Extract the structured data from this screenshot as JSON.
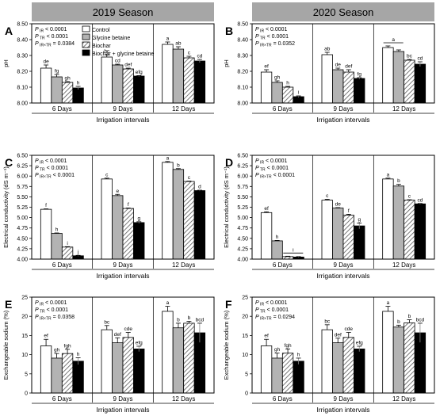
{
  "season_headers": [
    "2019 Season",
    "2020 Season"
  ],
  "legend": [
    "Control",
    "Glycine betaine",
    "Biochar",
    "Biochar + glycine betaine"
  ],
  "colors": {
    "control": "#ffffff",
    "glycine": "#b3b3b3",
    "biochar_hatch": "#555555",
    "combined": "#000000",
    "header_bg": "#a6a6a6"
  },
  "chart_data": [
    {
      "type": "bar",
      "panel_label": "A",
      "season": "2019 Season",
      "stats": [
        "P IR < 0.0001",
        "P TR < 0.0001",
        "P IR×TR = 0.0384"
      ],
      "xlabel": "Irrigation intervals",
      "ylabel": "pH",
      "ylim": [
        8.0,
        8.5
      ],
      "yticks": [
        "8.00",
        "8.10",
        "8.20",
        "8.30",
        "8.40",
        "8.50"
      ],
      "categories": [
        "6 Days",
        "9 Days",
        "12 Days"
      ],
      "series": [
        {
          "name": "Control",
          "values": [
            8.22,
            8.29,
            8.37
          ],
          "errors": [
            0.02,
            0.015,
            0.015
          ],
          "letters": [
            "de",
            "bc",
            "a"
          ]
        },
        {
          "name": "Glycine betaine",
          "values": [
            8.165,
            8.24,
            8.34
          ],
          "errors": [
            0.015,
            0.005,
            0.015
          ],
          "letters": [
            "fg",
            "cd",
            "ab"
          ]
        },
        {
          "name": "Biochar",
          "values": [
            8.13,
            8.215,
            8.285
          ],
          "errors": [
            0.005,
            0.005,
            0.01
          ],
          "letters": [
            "gh",
            "def",
            "c"
          ]
        },
        {
          "name": "Biochar + glycine betaine",
          "values": [
            8.095,
            8.17,
            8.265
          ],
          "errors": [
            0.01,
            0.003,
            0.01
          ],
          "letters": [
            "h",
            "efg",
            "cd"
          ]
        }
      ]
    },
    {
      "type": "bar",
      "panel_label": "B",
      "season": "2020 Season",
      "stats": [
        "P IR < 0.0001",
        "P TR < 0.0001",
        "P IR×TR = 0.0352"
      ],
      "xlabel": "Irrigation intervals",
      "ylabel": "pH",
      "ylim": [
        8.0,
        8.5
      ],
      "yticks": [
        "8.00",
        "8.10",
        "8.20",
        "8.30",
        "8.40",
        "8.50"
      ],
      "categories": [
        "6 Days",
        "9 Days",
        "12 Days"
      ],
      "series": [
        {
          "name": "Control",
          "values": [
            8.195,
            8.305,
            8.35
          ],
          "errors": [
            0.015,
            0.015,
            0.01
          ],
          "letters": [
            "ef",
            "ab",
            ""
          ]
        },
        {
          "name": "Glycine betaine",
          "values": [
            8.13,
            8.21,
            8.325
          ],
          "errors": [
            0.01,
            0.01,
            0.01
          ],
          "letters": [
            "gh",
            "de",
            ""
          ]
        },
        {
          "name": "Biochar",
          "values": [
            8.1,
            8.195,
            8.27
          ],
          "errors": [
            0.005,
            0.015,
            0.005
          ],
          "letters": [
            "h",
            "def",
            "bc"
          ]
        },
        {
          "name": "Biochar + glycine betaine",
          "values": [
            8.04,
            8.155,
            8.245
          ],
          "errors": [
            0.005,
            0.005,
            0.015
          ],
          "letters": [
            "i",
            "fg",
            "cd"
          ]
        }
      ],
      "group_annotations": [
        {
          "category_index": 2,
          "letter": "a",
          "from_series": 0,
          "to_series": 1
        }
      ]
    },
    {
      "type": "bar",
      "panel_label": "C",
      "season": "2019 Season",
      "stats": [
        "P IR < 0.0001",
        "P TR < 0.0001",
        "P IR×TR < 0.0001"
      ],
      "xlabel": "Irrigation intervals",
      "ylabel": "Electrical conductivity (dS m⁻¹)",
      "ylim": [
        4.0,
        6.5
      ],
      "yticks": [
        "4.00",
        "4.25",
        "4.50",
        "4.75",
        "5.00",
        "5.25",
        "5.50",
        "5.75",
        "6.00",
        "6.25",
        "6.50"
      ],
      "categories": [
        "6 Days",
        "9 Days",
        "12 Days"
      ],
      "series": [
        {
          "name": "Control",
          "values": [
            5.2,
            5.93,
            6.33
          ],
          "errors": [
            0.01,
            0.02,
            0.02
          ],
          "letters": [
            "f",
            "c",
            "a"
          ]
        },
        {
          "name": "Glycine betaine",
          "values": [
            4.62,
            5.53,
            6.16
          ],
          "errors": [
            0.01,
            0.03,
            0.02
          ],
          "letters": [
            "h",
            "e",
            "b"
          ]
        },
        {
          "name": "Biochar",
          "values": [
            4.29,
            5.22,
            5.87
          ],
          "errors": [
            0.01,
            0.01,
            0.01
          ],
          "letters": [
            "i",
            "f",
            "c"
          ]
        },
        {
          "name": "Biochar + glycine betaine",
          "values": [
            4.08,
            4.88,
            5.65
          ],
          "errors": [
            0.01,
            0.02,
            0.01
          ],
          "letters": [
            "j",
            "g",
            "d"
          ]
        }
      ]
    },
    {
      "type": "bar",
      "panel_label": "D",
      "season": "2020 Season",
      "stats": [
        "P IR < 0.0001",
        "P TR < 0.0001",
        "P IR×TR < 0.0001"
      ],
      "xlabel": "Irrigation intervals",
      "ylabel": "Electrical conductivity (dS m⁻¹)",
      "ylim": [
        4.0,
        6.5
      ],
      "yticks": [
        "4.00",
        "4.25",
        "4.50",
        "4.75",
        "5.00",
        "5.25",
        "5.50",
        "5.75",
        "6.00",
        "6.25",
        "6.50"
      ],
      "categories": [
        "6 Days",
        "9 Days",
        "12 Days"
      ],
      "series": [
        {
          "name": "Control",
          "values": [
            5.12,
            5.42,
            5.93
          ],
          "errors": [
            0.02,
            0.02,
            0.02
          ],
          "letters": [
            "ef",
            "c",
            "a"
          ]
        },
        {
          "name": "Glycine betaine",
          "values": [
            4.44,
            5.23,
            5.76
          ],
          "errors": [
            0.01,
            0.01,
            0.04
          ],
          "letters": [
            "h",
            "de",
            "b"
          ]
        },
        {
          "name": "Biochar",
          "values": [
            4.06,
            5.06,
            5.42
          ],
          "errors": [
            0.01,
            0.02,
            0.01
          ],
          "letters": [
            "",
            "f",
            "c"
          ]
        },
        {
          "name": "Biochar + glycine betaine",
          "values": [
            4.05,
            4.8,
            5.33
          ],
          "errors": [
            0.01,
            0.07,
            0.01
          ],
          "letters": [
            "",
            "g",
            "cd"
          ]
        }
      ],
      "group_annotations": [
        {
          "category_index": 0,
          "letter": "i",
          "from_series": 2,
          "to_series": 3
        }
      ]
    },
    {
      "type": "bar",
      "panel_label": "E",
      "season": "2019 Season",
      "stats": [
        "P IR < 0.0001",
        "P TR < 0.0001",
        "P IR×TR = 0.0358"
      ],
      "xlabel": "Irrigation intervals",
      "ylabel": "Exchangeable sodium (%)",
      "ylim": [
        0,
        25
      ],
      "yticks": [
        "0",
        "5",
        "10",
        "15",
        "20",
        "25"
      ],
      "categories": [
        "6 Days",
        "9 Days",
        "12 Days"
      ],
      "series": [
        {
          "name": "Control",
          "values": [
            12.3,
            16.5,
            21.3
          ],
          "errors": [
            1.7,
            1.1,
            1.3
          ],
          "letters": [
            "ef",
            "bc",
            "a"
          ]
        },
        {
          "name": "Glycine betaine",
          "values": [
            9.1,
            13.1,
            17.0
          ],
          "errors": [
            1.2,
            1.3,
            1.2
          ],
          "letters": [
            "gh",
            "def",
            "b"
          ]
        },
        {
          "name": "Biochar",
          "values": [
            10.3,
            14.5,
            18.2
          ],
          "errors": [
            1.1,
            1.3,
            0.5
          ],
          "letters": [
            "fgh",
            "cde",
            "b"
          ]
        },
        {
          "name": "Biochar + glycine betaine",
          "values": [
            8.3,
            11.5,
            15.7
          ],
          "errors": [
            0.9,
            0.7,
            2.5
          ],
          "letters": [
            "h",
            "efg",
            "bcd"
          ]
        }
      ]
    },
    {
      "type": "bar",
      "panel_label": "F",
      "season": "2020 Season",
      "stats": [
        "P IR < 0.0001",
        "P TR < 0.0001",
        "P IR×TR = 0.0294"
      ],
      "xlabel": "Irrigation intervals",
      "ylabel": "Exchangeable sodium (%)",
      "ylim": [
        0,
        25
      ],
      "yticks": [
        "0",
        "5",
        "10",
        "15",
        "20",
        "25"
      ],
      "categories": [
        "6 Days",
        "9 Days",
        "12 Days"
      ],
      "series": [
        {
          "name": "Control",
          "values": [
            12.3,
            16.5,
            21.3
          ],
          "errors": [
            1.7,
            1.3,
            1.3
          ],
          "letters": [
            "ef",
            "bc",
            "a"
          ]
        },
        {
          "name": "Glycine betaine",
          "values": [
            9.1,
            13.1,
            17.2
          ],
          "errors": [
            1.3,
            1.2,
            0.5
          ],
          "letters": [
            "gh",
            "def",
            "b"
          ]
        },
        {
          "name": "Biochar",
          "values": [
            10.4,
            14.5,
            18.3
          ],
          "errors": [
            1.1,
            1.3,
            0.8
          ],
          "letters": [
            "fgh",
            "cde",
            "b"
          ]
        },
        {
          "name": "Biochar + glycine betaine",
          "values": [
            8.3,
            11.5,
            15.7
          ],
          "errors": [
            0.8,
            0.7,
            2.5
          ],
          "letters": [
            "h",
            "efg",
            "bcd"
          ]
        }
      ]
    }
  ]
}
